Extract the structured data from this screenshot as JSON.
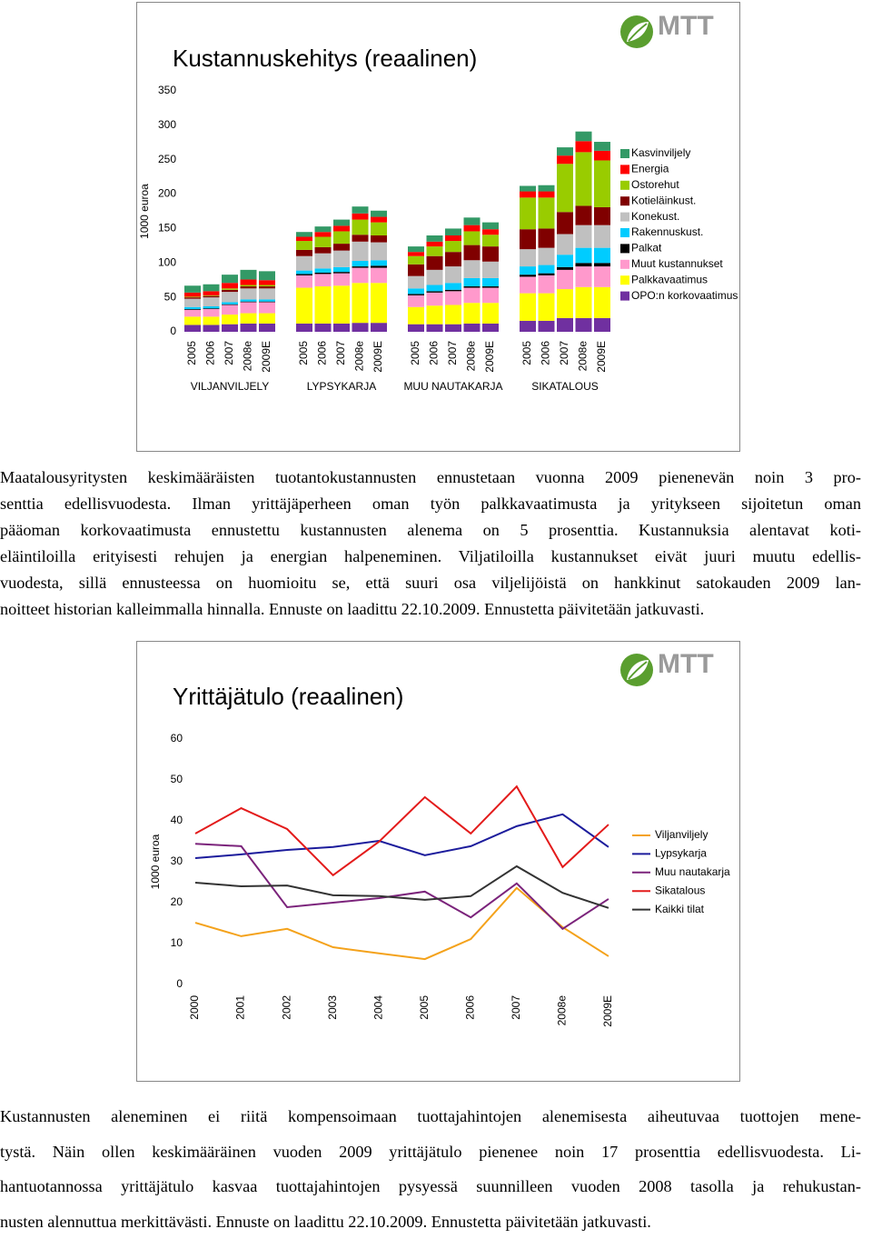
{
  "chart_data": [
    {
      "type": "bar",
      "stacked": true,
      "title": "Kustannuskehitys (reaalinen)",
      "logo": "MTT",
      "y_label": "1000 euroa",
      "categories": [
        "2005",
        "2006",
        "2007",
        "2008e",
        "2009E",
        "2005",
        "2006",
        "2007",
        "2008e",
        "2009E",
        "2005",
        "2006",
        "2007",
        "2008e",
        "2009E",
        "2005",
        "2006",
        "2007",
        "2008e",
        "2009E"
      ],
      "groups": [
        "VILJANVILJELY",
        "LYPSYKARJA",
        "MUU NAUTAKARJA",
        "SIKATALOUS"
      ],
      "ylim": [
        0,
        350
      ],
      "yticks": [
        0,
        50,
        100,
        150,
        200,
        250,
        300,
        350
      ],
      "grid": false,
      "legend": "right",
      "series": [
        {
          "name": "OPO:n korkovaatimus",
          "color": "#7030a0",
          "values": [
            10,
            10,
            11,
            12,
            12,
            12,
            12,
            12,
            13,
            13,
            11,
            11,
            11,
            12,
            12,
            16,
            16,
            20,
            20,
            20
          ]
        },
        {
          "name": "Palkkavaatimus",
          "color": "#ffff00",
          "values": [
            12,
            12,
            14,
            15,
            15,
            52,
            54,
            55,
            58,
            58,
            25,
            27,
            28,
            30,
            30,
            40,
            40,
            42,
            45,
            45
          ]
        },
        {
          "name": "Muut kustannukset",
          "color": "#ff99cc",
          "values": [
            10,
            11,
            14,
            16,
            16,
            18,
            18,
            18,
            22,
            22,
            17,
            19,
            20,
            22,
            22,
            24,
            26,
            28,
            30,
            30
          ]
        },
        {
          "name": "Palkat",
          "color": "#000000",
          "values": [
            1,
            1,
            1,
            1,
            1,
            2,
            2,
            2,
            2,
            3,
            2,
            2,
            2,
            2,
            2,
            3,
            3,
            4,
            5,
            5
          ]
        },
        {
          "name": "Rakennuskust.",
          "color": "#00ccff",
          "values": [
            3,
            3,
            3,
            3,
            3,
            5,
            6,
            7,
            8,
            8,
            8,
            9,
            10,
            12,
            12,
            12,
            12,
            18,
            22,
            22
          ]
        },
        {
          "name": "Konekust.",
          "color": "#c0c0c0",
          "values": [
            12,
            13,
            15,
            16,
            16,
            21,
            22,
            24,
            28,
            26,
            18,
            22,
            24,
            26,
            24,
            25,
            25,
            30,
            33,
            33
          ]
        },
        {
          "name": "Kotieläinkust.",
          "color": "#800000",
          "values": [
            2,
            2,
            3,
            3,
            3,
            9,
            9,
            10,
            10,
            10,
            17,
            20,
            21,
            22,
            22,
            29,
            28,
            32,
            28,
            26
          ]
        },
        {
          "name": "Ostorehut",
          "color": "#99cc00",
          "values": [
            1,
            1,
            2,
            2,
            2,
            13,
            15,
            18,
            22,
            19,
            12,
            14,
            16,
            20,
            17,
            46,
            45,
            70,
            78,
            68
          ]
        },
        {
          "name": "Energia",
          "color": "#ff0000",
          "values": [
            6,
            6,
            8,
            8,
            7,
            6,
            7,
            8,
            9,
            8,
            6,
            7,
            8,
            9,
            8,
            9,
            9,
            12,
            16,
            14
          ]
        },
        {
          "name": "Kasvinviljely",
          "color": "#339966",
          "values": [
            10,
            10,
            12,
            14,
            13,
            7,
            8,
            9,
            10,
            9,
            8,
            9,
            10,
            11,
            10,
            8,
            9,
            12,
            14,
            13
          ]
        }
      ]
    },
    {
      "type": "line",
      "title": "Yrittäjätulo (reaalinen)",
      "logo": "MTT",
      "y_label": "1000 euroa",
      "categories": [
        "2000",
        "2001",
        "2002",
        "2003",
        "2004",
        "2005",
        "2006",
        "2007",
        "2008e",
        "2009E"
      ],
      "ylim": [
        0,
        60
      ],
      "yticks": [
        0,
        10,
        20,
        30,
        40,
        50,
        60
      ],
      "grid": false,
      "legend": "right",
      "series": [
        {
          "name": "Viljanviljely",
          "color": "#f4a21b",
          "values": [
            15.1,
            11.8,
            13.6,
            9.1,
            7.6,
            6.2,
            11.1,
            23.6,
            14,
            6.9
          ]
        },
        {
          "name": "Lypsykarja",
          "color": "#1c1c9c",
          "values": [
            30.9,
            31.8,
            32.9,
            33.6,
            35.1,
            31.6,
            33.8,
            38.7,
            41.6,
            33.6
          ]
        },
        {
          "name": "Muu nautakarja",
          "color": "#7b237b",
          "values": [
            34.4,
            33.8,
            18.9,
            20,
            21.1,
            22.7,
            16.4,
            24.7,
            13.6,
            20.9
          ]
        },
        {
          "name": "Sikatalous",
          "color": "#e31b1b",
          "values": [
            36.9,
            43.1,
            38,
            26.7,
            34.9,
            45.8,
            36.9,
            48.4,
            28.7,
            39.1
          ]
        },
        {
          "name": "Kaikki tilat",
          "color": "#333333",
          "values": [
            24.9,
            24,
            24.2,
            21.8,
            21.6,
            20.7,
            21.6,
            28.9,
            22.4,
            18.7
          ]
        }
      ]
    }
  ],
  "paragraphs": [
    {
      "lines": [
        "Maatalousyritysten keskimääräisten tuotantokustannusten ennustetaan vuonna 2009 pienenevän noin 3 pro-",
        "senttia edellisvuodesta. Ilman yrittäjäperheen oman työn palkkavaatimusta ja yritykseen sijoitetun oman",
        "pääoman korkovaatimusta ennustettu kustannusten alenema on 5 prosenttia. Kustannuksia alentavat koti-",
        "eläintiloilla erityisesti rehujen ja energian halpeneminen. Viljatiloilla kustannukset eivät juuri muutu edellis-",
        "vuodesta, sillä ennusteessa on huomioitu se, että suuri osa viljelijöistä on hankkinut satokauden 2009 lan-",
        "noitteet historian kalleimmalla hinnalla. Ennuste on laadittu 22.10.2009. Ennustetta päivitetään jatkuvasti."
      ]
    },
    {
      "lines": [
        "Kustannusten aleneminen ei riitä kompensoimaan tuottajahintojen alenemisesta aiheutuvaa tuottojen mene-",
        "tystä. Näin ollen keskimääräinen vuoden 2009 yrittäjätulo pienenee noin 17 prosenttia edellisvuodesta. Li-",
        "hantuotannossa yrittäjätulo kasvaa tuottajahintojen pysyessä suunnilleen vuoden 2008 tasolla ja rehukustan-",
        "nusten alennuttua merkittävästi. Ennuste on laadittu 22.10.2009. Ennustetta päivitetään jatkuvasti."
      ]
    }
  ]
}
